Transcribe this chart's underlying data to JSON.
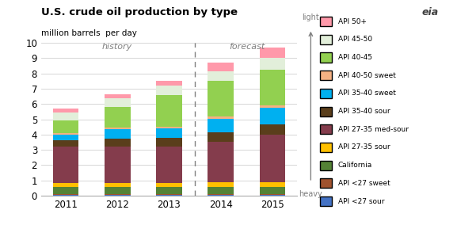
{
  "title": "U.S. crude oil production by type",
  "subtitle": "million barrels  per day",
  "years": [
    2011,
    2012,
    2013,
    2014,
    2015
  ],
  "categories": [
    "API <27 sour",
    "API <27 sweet",
    "California",
    "API 27-35 sour",
    "API 27-35 med-sour",
    "API 35-40 sour",
    "API 35-40 sweet",
    "API 40-50 sweet",
    "API 40-45",
    "API 45-50",
    "API 50+"
  ],
  "colors": [
    "#4472c4",
    "#a0522d",
    "#548235",
    "#ffc000",
    "#843c4c",
    "#5a3e1b",
    "#00b0f0",
    "#f4b183",
    "#92d050",
    "#e2efda",
    "#ff99aa"
  ],
  "data": {
    "API <27 sour": [
      0.08,
      0.07,
      0.07,
      0.08,
      0.08
    ],
    "API <27 sweet": [
      0.04,
      0.04,
      0.04,
      0.04,
      0.04
    ],
    "California": [
      0.45,
      0.45,
      0.45,
      0.45,
      0.45
    ],
    "API 27-35 sour": [
      0.28,
      0.28,
      0.28,
      0.32,
      0.32
    ],
    "API 27-35 med-sour": [
      2.35,
      2.35,
      2.4,
      2.65,
      3.1
    ],
    "API 35-40 sour": [
      0.45,
      0.55,
      0.55,
      0.6,
      0.7
    ],
    "API 35-40 sweet": [
      0.35,
      0.6,
      0.6,
      0.9,
      1.05
    ],
    "API 40-50 sweet": [
      0.12,
      0.12,
      0.12,
      0.15,
      0.18
    ],
    "API 40-45": [
      0.8,
      1.35,
      2.05,
      2.3,
      2.3
    ],
    "API 45-50": [
      0.5,
      0.55,
      0.65,
      0.65,
      0.8
    ],
    "API 50+": [
      0.28,
      0.28,
      0.32,
      0.55,
      0.65
    ]
  },
  "history_label": "history",
  "forecast_label": "forecast",
  "ylim": [
    0,
    10
  ],
  "yticks": [
    0,
    1,
    2,
    3,
    4,
    5,
    6,
    7,
    8,
    9,
    10
  ],
  "bar_width": 0.5,
  "light_label": "light",
  "heavy_label": "heavy",
  "background_color": "#ffffff"
}
